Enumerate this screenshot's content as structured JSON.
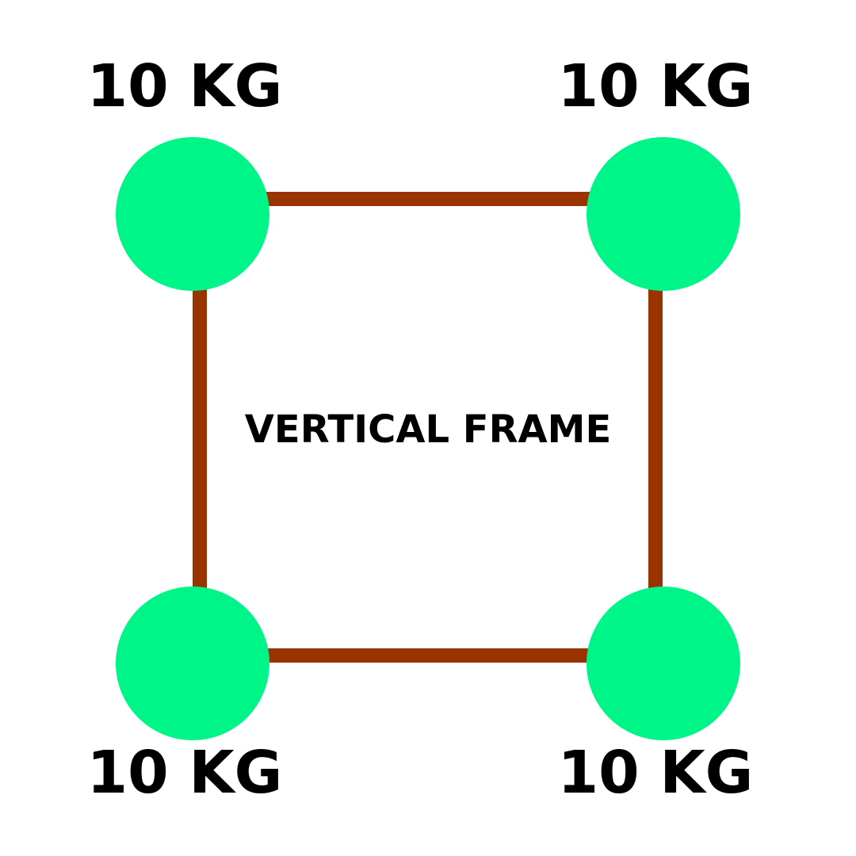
{
  "frame": {
    "title": "VERTICAL FRAME",
    "bar_color": "#993300"
  },
  "masses": {
    "color": "#00f589",
    "top_left": {
      "label": "10 KG"
    },
    "top_right": {
      "label": "10 KG"
    },
    "bottom_left": {
      "label": "10 KG"
    },
    "bottom_right": {
      "label": "10 KG"
    }
  }
}
